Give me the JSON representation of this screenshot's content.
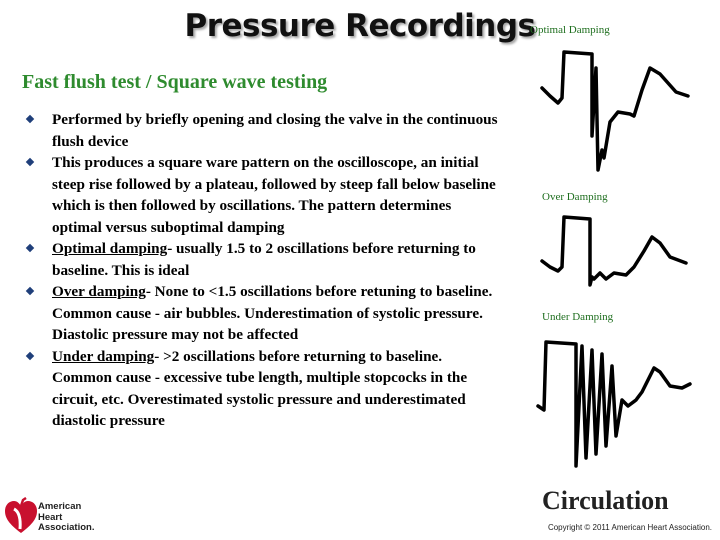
{
  "slide": {
    "title": "Pressure Recordings",
    "subtitle": "Fast flush test / Square wave testing",
    "bullets": [
      {
        "lead": "",
        "text": "Performed by briefly opening and closing the valve in the continuous flush device"
      },
      {
        "lead": "",
        "text": "This produces a square ware pattern on the oscilloscope, an initial steep rise followed by a plateau, followed by steep fall below baseline which is then followed by oscillations. The pattern determines optimal versus suboptimal damping"
      },
      {
        "lead": "Optimal damping",
        "text": "- usually 1.5 to 2 oscillations before returning to baseline. This is ideal"
      },
      {
        "lead": "Over damping",
        "text": "- None to <1.5 oscillations before retuning to baseline. Common cause - air bubbles. Underestimation of systolic pressure. Diastolic pressure may not be affected"
      },
      {
        "lead": "Under damping",
        "text": "- >2 oscillations before returning to baseline. Common cause - excessive tube length, multiple stopcocks in the circuit, etc. Overestimated systolic pressure and underestimated diastolic pressure"
      }
    ]
  },
  "waveforms": {
    "optimal_label": "Optimal Damping",
    "over_label": "Over Damping",
    "under_label": "Under Damping"
  },
  "footer": {
    "logo_line1": "American",
    "logo_line2": "Heart",
    "logo_line3": "Association.",
    "journal": "Circulation",
    "copyright": "Copyright © 2011 American Heart Association."
  },
  "colors": {
    "subtitle": "#2e8b2e",
    "bullet": "#1f3f7a",
    "logo_red": "#c8102e"
  }
}
